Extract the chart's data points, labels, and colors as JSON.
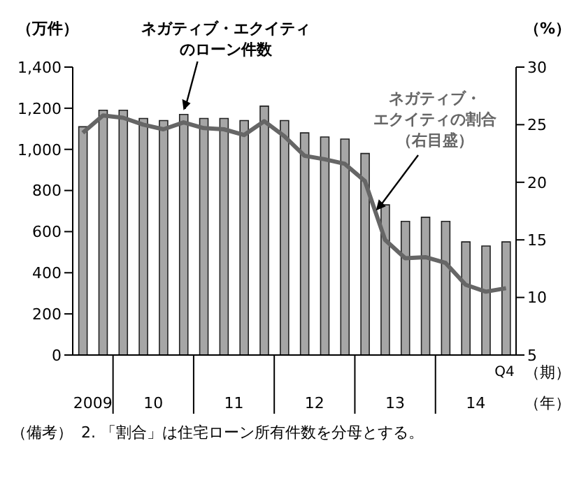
{
  "chart_data": {
    "type": "bar",
    "xlabel": "（期）",
    "ylabel": "（万件）",
    "y2label": "（%）",
    "categories": [
      null,
      null,
      null,
      null,
      null,
      null,
      null,
      null,
      null,
      null,
      null,
      null,
      null,
      null,
      null,
      null,
      null,
      null,
      null,
      null,
      null,
      "Q4"
    ],
    "series": [
      {
        "name": "ネガティブ・エクイティのローン件数",
        "color": "#a6a6a6",
        "values": [
          1110,
          1190,
          1190,
          1150,
          1140,
          1170,
          1150,
          1150,
          1140,
          1210,
          1140,
          1080,
          1060,
          1050,
          980,
          730,
          650,
          670,
          650,
          550,
          530,
          550
        ]
      },
      {
        "name": "ネガティブ・エクイティの割合（右目盛）",
        "type": "line",
        "axis": "y2",
        "color": "#666666",
        "values": [
          24.3,
          25.8,
          25.6,
          25.0,
          24.6,
          25.2,
          24.7,
          24.6,
          24.1,
          25.3,
          24.0,
          22.3,
          22.0,
          21.6,
          20.1,
          15.0,
          13.4,
          13.5,
          13.0,
          11.1,
          10.5,
          10.8
        ]
      }
    ],
    "ylim": [
      0,
      1400
    ],
    "yticks": [
      0,
      {
        "value": 200,
        "label": "200"
      },
      {
        "value": 400,
        "label": "400"
      },
      {
        "value": 600,
        "label": "600"
      },
      {
        "value": 800,
        "label": "800"
      },
      {
        "value": 1000,
        "label": "1,000"
      },
      {
        "value": 1200,
        "label": "1,200"
      },
      {
        "value": 1400,
        "label": "1,400"
      }
    ],
    "y2lim": [
      5,
      30
    ],
    "y2ticks": [
      5,
      10,
      15,
      20,
      25,
      30
    ],
    "grid": false,
    "legend": false,
    "marker": "none",
    "line_style": "solid",
    "annotations": [
      "2009",
      "10",
      "11",
      "12",
      "13",
      "14",
      "（年）",
      "（備考）",
      "2. 「割合」は住宅ローン所有件数を分母とする。"
    ]
  }
}
